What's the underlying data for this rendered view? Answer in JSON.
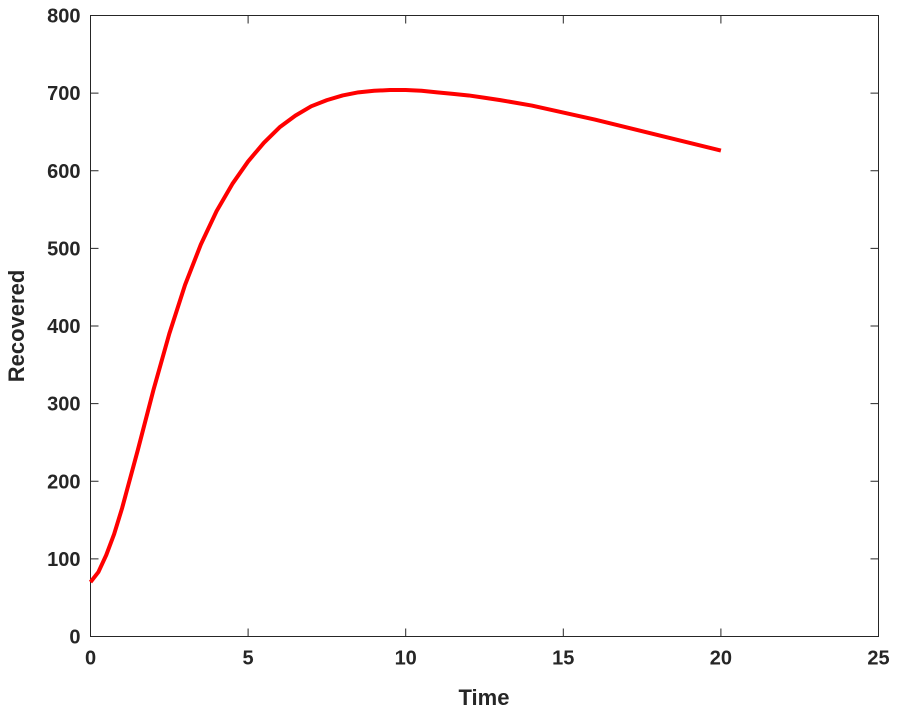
{
  "chart_data": {
    "type": "line",
    "title": "",
    "xlabel": "Time",
    "ylabel": "Recovered",
    "xlim": [
      0,
      25
    ],
    "ylim": [
      0,
      800
    ],
    "xticks": [
      0,
      5,
      10,
      15,
      20,
      25
    ],
    "yticks": [
      0,
      100,
      200,
      300,
      400,
      500,
      600,
      700,
      800
    ],
    "grid": false,
    "series": [
      {
        "color": "#ff0000",
        "x": [
          0,
          0.25,
          0.5,
          0.75,
          1,
          1.5,
          2,
          2.5,
          3,
          3.5,
          4,
          4.5,
          5,
          5.5,
          6,
          6.5,
          7,
          7.5,
          8,
          8.5,
          9,
          9.5,
          10,
          10.5,
          11,
          11.5,
          12,
          12.5,
          13,
          14,
          15,
          16,
          17,
          18,
          19,
          20
        ],
        "y": [
          70,
          83,
          105,
          132,
          165,
          240,
          318,
          390,
          453,
          505,
          548,
          583,
          612,
          636,
          656,
          671,
          683,
          691,
          697,
          701,
          703,
          704,
          704,
          703,
          701,
          699,
          697,
          694,
          691,
          684,
          675,
          666,
          656,
          646,
          636,
          626
        ]
      }
    ]
  }
}
